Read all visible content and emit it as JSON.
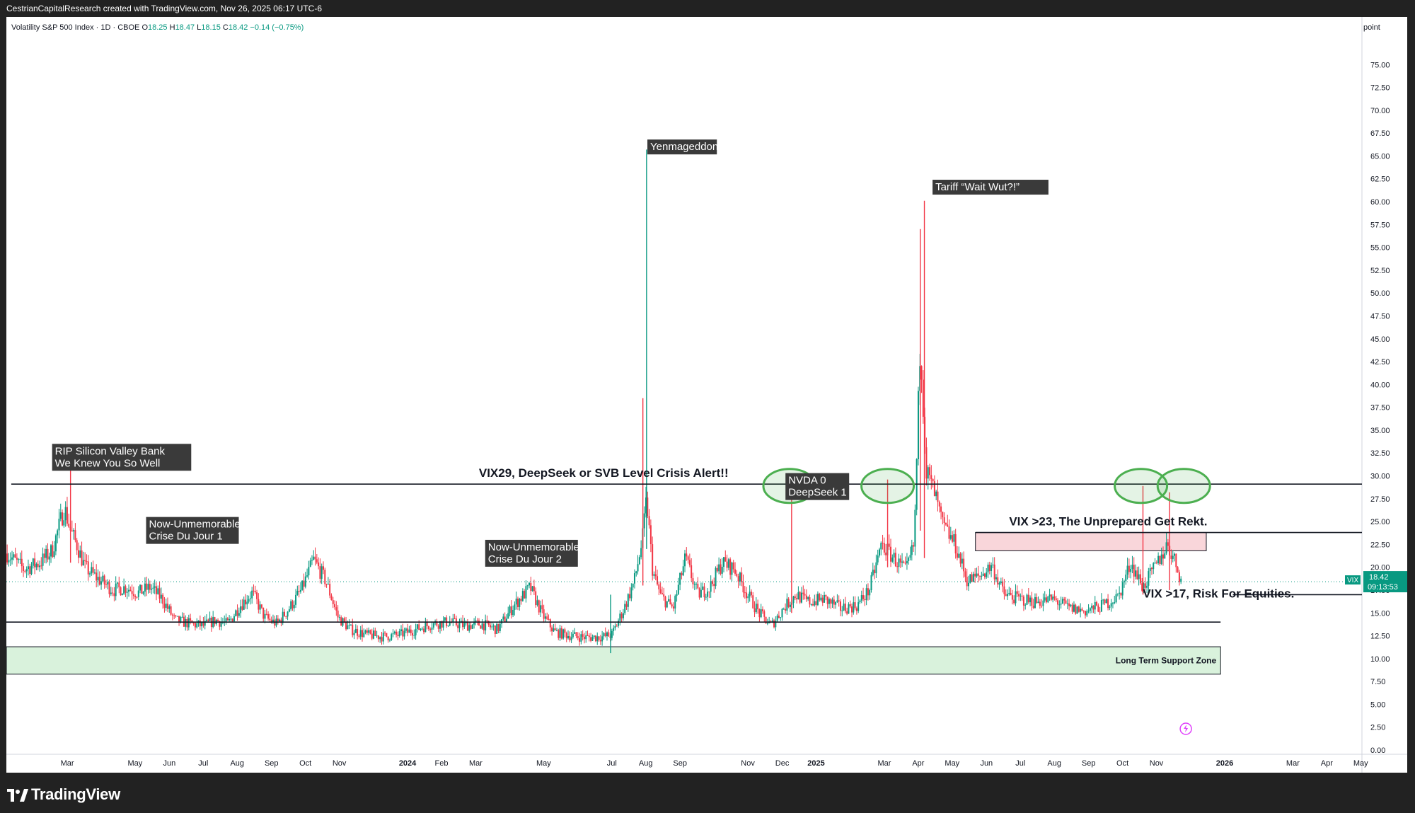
{
  "header": {
    "attribution": "CestrianCapitalResearch created with TradingView.com, Nov 26, 2025 06:17 UTC-6"
  },
  "legend": {
    "symbol": "Volatility S&P 500 Index · 1D · CBOE",
    "o_label": "O",
    "o_value": "18.25",
    "h_label": "H",
    "h_value": "18.47",
    "l_label": "L",
    "l_value": "18.15",
    "c_label": "C",
    "c_value": "18.42",
    "change": "−0.14 (−0.75%)"
  },
  "price_scale": {
    "unit_label": "point"
  },
  "last_price": {
    "symbol": "VIX",
    "value": "18.42",
    "countdown": "09:13:53"
  },
  "footer": {
    "brand": "TradingView"
  },
  "colors": {
    "up": "#089981",
    "down": "#f23645",
    "ellipse": "#4caf50",
    "support_zone": "#d9f2dc",
    "resistance_zone": "#f9d6da"
  },
  "chart_data": {
    "type": "candlestick",
    "ylim": [
      0,
      77.5
    ],
    "y_ticks": [
      0,
      2.5,
      5,
      7.5,
      10,
      12.5,
      15,
      17.5,
      20,
      22.5,
      25,
      27.5,
      30,
      32.5,
      35,
      37.5,
      40,
      42.5,
      45,
      47.5,
      50,
      52.5,
      55,
      57.5,
      60,
      62.5,
      65,
      67.5,
      70,
      72.5,
      75
    ],
    "x_ticks": [
      {
        "label": "Mar",
        "t": 2023.167,
        "bold": false
      },
      {
        "label": "May",
        "t": 2023.333,
        "bold": false
      },
      {
        "label": "Jun",
        "t": 2023.417,
        "bold": false
      },
      {
        "label": "Jul",
        "t": 2023.5,
        "bold": false
      },
      {
        "label": "Aug",
        "t": 2023.583,
        "bold": false
      },
      {
        "label": "Sep",
        "t": 2023.667,
        "bold": false
      },
      {
        "label": "Oct",
        "t": 2023.75,
        "bold": false
      },
      {
        "label": "Nov",
        "t": 2023.833,
        "bold": false
      },
      {
        "label": "2024",
        "t": 2024.0,
        "bold": true
      },
      {
        "label": "Feb",
        "t": 2024.083,
        "bold": false
      },
      {
        "label": "Mar",
        "t": 2024.167,
        "bold": false
      },
      {
        "label": "May",
        "t": 2024.333,
        "bold": false
      },
      {
        "label": "Jul",
        "t": 2024.5,
        "bold": false
      },
      {
        "label": "Aug",
        "t": 2024.583,
        "bold": false
      },
      {
        "label": "Sep",
        "t": 2024.667,
        "bold": false
      },
      {
        "label": "Nov",
        "t": 2024.833,
        "bold": false
      },
      {
        "label": "Dec",
        "t": 2024.917,
        "bold": false
      },
      {
        "label": "2025",
        "t": 2025.0,
        "bold": true
      },
      {
        "label": "Mar",
        "t": 2025.167,
        "bold": false
      },
      {
        "label": "Apr",
        "t": 2025.25,
        "bold": false
      },
      {
        "label": "May",
        "t": 2025.333,
        "bold": false
      },
      {
        "label": "Jun",
        "t": 2025.417,
        "bold": false
      },
      {
        "label": "Jul",
        "t": 2025.5,
        "bold": false
      },
      {
        "label": "Aug",
        "t": 2025.583,
        "bold": false
      },
      {
        "label": "Sep",
        "t": 2025.667,
        "bold": false
      },
      {
        "label": "Oct",
        "t": 2025.75,
        "bold": false
      },
      {
        "label": "Nov",
        "t": 2025.833,
        "bold": false
      },
      {
        "label": "2026",
        "t": 2026.0,
        "bold": true
      },
      {
        "label": "Mar",
        "t": 2026.167,
        "bold": false
      },
      {
        "label": "Apr",
        "t": 2026.25,
        "bold": false
      },
      {
        "label": "May",
        "t": 2026.333,
        "bold": false
      }
    ],
    "x_range": [
      2023.018,
      2026.336
    ],
    "series_anchor": [
      [
        2023.02,
        21.5
      ],
      [
        2023.06,
        19.8
      ],
      [
        2023.1,
        20.5
      ],
      [
        2023.13,
        21.8
      ],
      [
        2023.16,
        26.5
      ],
      [
        2023.175,
        24.0
      ],
      [
        2023.19,
        22.5
      ],
      [
        2023.21,
        20.0
      ],
      [
        2023.24,
        18.8
      ],
      [
        2023.28,
        17.5
      ],
      [
        2023.31,
        17.8
      ],
      [
        2023.34,
        17.2
      ],
      [
        2023.37,
        17.8
      ],
      [
        2023.4,
        16.5
      ],
      [
        2023.43,
        14.2
      ],
      [
        2023.47,
        13.8
      ],
      [
        2023.5,
        13.6
      ],
      [
        2023.53,
        14.2
      ],
      [
        2023.56,
        13.8
      ],
      [
        2023.59,
        15.8
      ],
      [
        2023.62,
        17.2
      ],
      [
        2023.65,
        14.5
      ],
      [
        2023.68,
        13.8
      ],
      [
        2023.71,
        15.5
      ],
      [
        2023.74,
        17.5
      ],
      [
        2023.77,
        20.8
      ],
      [
        2023.8,
        18.5
      ],
      [
        2023.83,
        14.5
      ],
      [
        2023.86,
        13.2
      ],
      [
        2023.9,
        12.6
      ],
      [
        2023.94,
        12.4
      ],
      [
        2023.98,
        12.6
      ],
      [
        2024.02,
        13.2
      ],
      [
        2024.06,
        13.8
      ],
      [
        2024.1,
        14.0
      ],
      [
        2024.14,
        13.6
      ],
      [
        2024.18,
        13.8
      ],
      [
        2024.22,
        13.2
      ],
      [
        2024.26,
        15.8
      ],
      [
        2024.3,
        17.8
      ],
      [
        2024.33,
        14.8
      ],
      [
        2024.36,
        12.9
      ],
      [
        2024.4,
        12.5
      ],
      [
        2024.44,
        12.3
      ],
      [
        2024.48,
        12.4
      ],
      [
        2024.5,
        12.6
      ],
      [
        2024.53,
        15.5
      ],
      [
        2024.555,
        18.5
      ],
      [
        2024.575,
        23.0
      ],
      [
        2024.585,
        27.5
      ],
      [
        2024.6,
        19.5
      ],
      [
        2024.62,
        16.8
      ],
      [
        2024.65,
        15.5
      ],
      [
        2024.68,
        21.0
      ],
      [
        2024.71,
        17.0
      ],
      [
        2024.74,
        17.8
      ],
      [
        2024.77,
        20.5
      ],
      [
        2024.8,
        19.8
      ],
      [
        2024.83,
        17.2
      ],
      [
        2024.86,
        15.0
      ],
      [
        2024.89,
        13.6
      ],
      [
        2024.92,
        15.5
      ],
      [
        2024.95,
        17.0
      ],
      [
        2024.98,
        16.2
      ],
      [
        2025.02,
        16.5
      ],
      [
        2025.06,
        15.5
      ],
      [
        2025.1,
        15.8
      ],
      [
        2025.13,
        17.5
      ],
      [
        2025.16,
        22.5
      ],
      [
        2025.19,
        21.0
      ],
      [
        2025.22,
        19.5
      ],
      [
        2025.24,
        22.5
      ],
      [
        2025.255,
        45.0
      ],
      [
        2025.27,
        30.5
      ],
      [
        2025.29,
        28.0
      ],
      [
        2025.31,
        24.5
      ],
      [
        2025.34,
        22.5
      ],
      [
        2025.37,
        18.5
      ],
      [
        2025.4,
        19.0
      ],
      [
        2025.43,
        20.2
      ],
      [
        2025.46,
        17.0
      ],
      [
        2025.5,
        16.5
      ],
      [
        2025.54,
        16.2
      ],
      [
        2025.58,
        16.5
      ],
      [
        2025.62,
        15.5
      ],
      [
        2025.66,
        15.2
      ],
      [
        2025.7,
        15.8
      ],
      [
        2025.74,
        16.8
      ],
      [
        2025.77,
        20.5
      ],
      [
        2025.8,
        17.8
      ],
      [
        2025.83,
        20.0
      ],
      [
        2025.86,
        22.5
      ],
      [
        2025.88,
        20.5
      ],
      [
        2025.895,
        18.42
      ]
    ],
    "spikes": [
      {
        "t": 2023.175,
        "high": 30.8,
        "low": 20.5
      },
      {
        "t": 2024.585,
        "high": 65.7,
        "low": 22.0
      },
      {
        "t": 2024.576,
        "high": 38.5,
        "low": 18.0
      },
      {
        "t": 2024.497,
        "high": 17.0,
        "low": 10.6
      },
      {
        "t": 2024.94,
        "high": 27.6,
        "low": 15.0
      },
      {
        "t": 2025.175,
        "high": 29.6,
        "low": 20.0
      },
      {
        "t": 2025.265,
        "high": 60.1,
        "low": 21.0
      },
      {
        "t": 2025.255,
        "high": 57.0,
        "low": 24.0
      },
      {
        "t": 2025.8,
        "high": 28.9,
        "low": 17.0
      },
      {
        "t": 2025.865,
        "high": 28.2,
        "low": 17.5
      }
    ],
    "horizontal_lines": [
      {
        "name": "crisis-alert-line",
        "value": 29.1,
        "t_start": 2023.03,
        "t_end": 2026.336
      },
      {
        "name": "rekt-line",
        "value": 23.8,
        "t_start": 2025.39,
        "t_end": 2026.336
      },
      {
        "name": "risk-line",
        "value": 17.0,
        "t_start": 2026.02,
        "t_end": 2026.336
      },
      {
        "name": "support-line",
        "value": 14.0,
        "t_start": 2023.018,
        "t_end": 2025.99
      }
    ],
    "zones": [
      {
        "name": "long-term-support-zone",
        "low": 8.3,
        "high": 11.3,
        "t_start": 2023.018,
        "t_end": 2025.99,
        "label": "Long Term Support Zone"
      },
      {
        "name": "resistance-zone",
        "low": 21.8,
        "high": 23.8,
        "t_start": 2025.39,
        "t_end": 2025.955,
        "label": ""
      }
    ],
    "annotations": [
      {
        "name": "svb-label",
        "lines": [
          "RIP Silicon Valley Bank",
          "We Knew You So Well"
        ],
        "t": 2023.13,
        "value": 33.5,
        "style": "box"
      },
      {
        "name": "crise1-label",
        "lines": [
          "Now-Unmemorable",
          "Crise Du Jour 1"
        ],
        "t": 2023.36,
        "value": 25.5,
        "style": "box"
      },
      {
        "name": "crise2-label",
        "lines": [
          "Now-Unmemorable",
          "Crise Du Jour 2"
        ],
        "t": 2024.19,
        "value": 23.0,
        "style": "box"
      },
      {
        "name": "yen-label",
        "lines": [
          "Yenmageddon"
        ],
        "t": 2024.587,
        "value": 66.8,
        "style": "box"
      },
      {
        "name": "tariff-label",
        "lines": [
          "Tariff “Wait Wut?!”"
        ],
        "t": 2025.285,
        "value": 62.4,
        "style": "box"
      },
      {
        "name": "nvda-label",
        "lines": [
          "NVDA 0",
          "DeepSeek 1"
        ],
        "t": 2024.925,
        "value": 30.3,
        "style": "box"
      },
      {
        "name": "crisis-text",
        "lines": [
          "VIX29, DeepSeek or SVB Level Crisis Alert!!"
        ],
        "t": 2024.48,
        "value": 29.9,
        "style": "bold"
      },
      {
        "name": "rekt-text",
        "lines": [
          "VIX >23, The Unprepared Get Rekt."
        ],
        "t": 2025.715,
        "value": 24.6,
        "style": "bold"
      },
      {
        "name": "risk-text",
        "lines": [
          "VIX >17, Risk For Equities."
        ],
        "t": 2025.985,
        "value": 16.7,
        "style": "bold"
      }
    ],
    "ellipses": [
      {
        "t": 2024.935,
        "value": 28.9
      },
      {
        "t": 2025.175,
        "value": 28.9
      },
      {
        "t": 2025.795,
        "value": 28.9
      },
      {
        "t": 2025.9,
        "value": 28.9
      }
    ]
  }
}
